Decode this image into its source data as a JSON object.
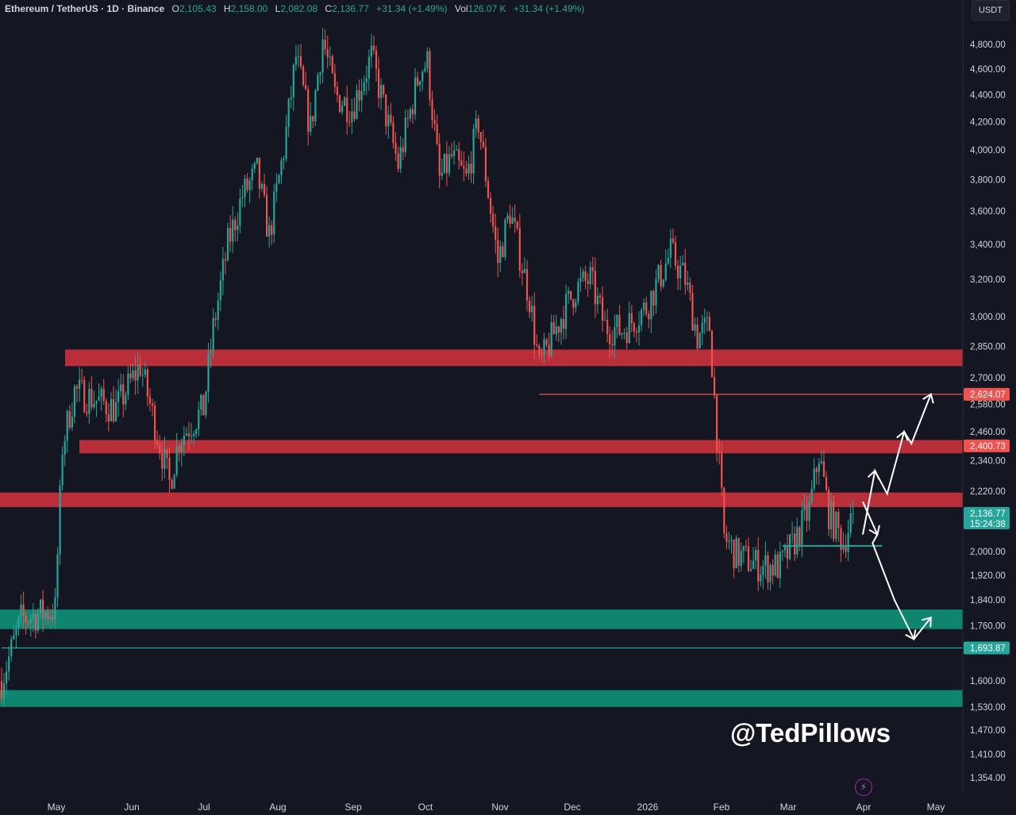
{
  "header": {
    "symbol": "Ethereum / TetherUS · 1D · Binance",
    "o_label": "O",
    "o_value": "2,105.43",
    "h_label": "H",
    "h_value": "2,158.00",
    "l_label": "L",
    "l_value": "2,082.08",
    "c_label": "C",
    "c_value": "2,136.77",
    "change": "+31.34 (+1.49%)",
    "vol_label": "Vol",
    "vol_value": "126.07 K",
    "vol_change": "+31.34 (+1.49%)"
  },
  "currency_button": "USDT",
  "watermark": "@TedPillows",
  "bolt_icon": "lightning-icon",
  "colors": {
    "background": "#141722",
    "up": "#26a69a",
    "down": "#ef5350",
    "resistance_zone": "#c8323c",
    "support_zone": "#0f8a74",
    "text": "#d1d4dc"
  },
  "chart_data": {
    "type": "candlestick",
    "y_scale": "log",
    "ylim": [
      1320,
      5000
    ],
    "y_ticks": [
      "4,800.00",
      "4,600.00",
      "4,400.00",
      "4,200.00",
      "4,000.00",
      "3,800.00",
      "3,600.00",
      "3,400.00",
      "3,200.00",
      "3,000.00",
      "2,850.00",
      "2,700.00",
      "2,580.00",
      "2,460.00",
      "2,340.00",
      "2,220.00",
      "2,000.00",
      "1,920.00",
      "1,840.00",
      "1,760.00",
      "1,600.00",
      "1,530.00",
      "1,470.00",
      "1,410.00",
      "1,354.00"
    ],
    "x_ticks": [
      "May",
      "Jun",
      "Jul",
      "Aug",
      "Sep",
      "Oct",
      "Nov",
      "Dec",
      "2026",
      "Feb",
      "Mar",
      "Apr",
      "May"
    ],
    "price_path": [
      [
        "2025-04-14",
        1600
      ],
      [
        "2025-04-22",
        1780
      ],
      [
        "2025-05-06",
        1810
      ],
      [
        "2025-05-09",
        2400
      ],
      [
        "2025-05-14",
        2640
      ],
      [
        "2025-05-31",
        2560
      ],
      [
        "2025-06-10",
        2760
      ],
      [
        "2025-06-22",
        2250
      ],
      [
        "2025-06-26",
        2430
      ],
      [
        "2025-07-06",
        2560
      ],
      [
        "2025-07-10",
        2940
      ],
      [
        "2025-07-16",
        3400
      ],
      [
        "2025-07-22",
        3700
      ],
      [
        "2025-07-28",
        3850
      ],
      [
        "2025-08-02",
        3450
      ],
      [
        "2025-08-08",
        4000
      ],
      [
        "2025-08-13",
        4700
      ],
      [
        "2025-08-19",
        4150
      ],
      [
        "2025-08-24",
        4850
      ],
      [
        "2025-08-29",
        4400
      ],
      [
        "2025-09-05",
        4300
      ],
      [
        "2025-09-13",
        4700
      ],
      [
        "2025-09-24",
        3900
      ],
      [
        "2025-10-03",
        4600
      ],
      [
        "2025-10-06",
        4650
      ],
      [
        "2025-10-11",
        3800
      ],
      [
        "2025-10-16",
        3950
      ],
      [
        "2025-10-22",
        3800
      ],
      [
        "2025-10-27",
        4200
      ],
      [
        "2025-11-04",
        3300
      ],
      [
        "2025-11-09",
        3600
      ],
      [
        "2025-11-17",
        3100
      ],
      [
        "2025-11-21",
        2750
      ],
      [
        "2025-11-30",
        3000
      ],
      [
        "2025-12-06",
        3150
      ],
      [
        "2025-12-12",
        3200
      ],
      [
        "2025-12-18",
        2950
      ],
      [
        "2025-12-25",
        2930
      ],
      [
        "2026-01-04",
        3050
      ],
      [
        "2026-01-14",
        3350
      ],
      [
        "2026-01-20",
        3200
      ],
      [
        "2026-01-25",
        2900
      ],
      [
        "2026-01-30",
        2950
      ],
      [
        "2026-02-02",
        2450
      ],
      [
        "2026-02-05",
        2050
      ],
      [
        "2026-02-10",
        1990
      ],
      [
        "2026-02-20",
        1950
      ],
      [
        "2026-02-28",
        1950
      ],
      [
        "2026-03-05",
        2020
      ],
      [
        "2026-03-12",
        2150
      ],
      [
        "2026-03-16",
        2370
      ],
      [
        "2026-03-20",
        2140
      ],
      [
        "2026-03-26",
        2030
      ],
      [
        "2026-03-30",
        2136.77
      ]
    ],
    "zones": [
      {
        "type": "resistance",
        "from_price": 2755,
        "to_price": 2835
      },
      {
        "type": "resistance",
        "from_price": 2370,
        "to_price": 2425
      },
      {
        "type": "resistance",
        "from_price": 2160,
        "to_price": 2215
      },
      {
        "type": "support",
        "from_price": 1750,
        "to_price": 1810
      },
      {
        "type": "support",
        "from_price": 1530,
        "to_price": 1575
      }
    ],
    "level_lines": [
      {
        "price": 2624.07,
        "label": "2,624.07",
        "color": "#ef5350",
        "from_date": "2025-11-21"
      },
      {
        "price": 1693.87,
        "label": "1,693.87",
        "color": "#26a69a",
        "from_date": "2025-04-14"
      },
      {
        "price": 2020,
        "color": "#26a69a",
        "from_date": "2026-03-01",
        "to_date": "2026-04-11"
      }
    ],
    "last_price": {
      "label": "2,136.77",
      "countdown": "15:24:38",
      "price": 2136.77
    },
    "zone_price_tag": {
      "label": "2,400.73",
      "price": 2400.73
    },
    "projection_bullish": [
      [
        "2026-04-03",
        2060
      ],
      [
        "2026-04-08",
        2300
      ],
      [
        "2026-04-13",
        2210
      ],
      [
        "2026-04-20",
        2460
      ],
      [
        "2026-04-23",
        2410
      ],
      [
        "2026-05-01",
        2625
      ]
    ],
    "projection_bearish": [
      [
        "2026-04-03",
        2180
      ],
      [
        "2026-04-09",
        2060
      ],
      [
        "2026-04-07",
        2030
      ],
      [
        "2026-04-16",
        1840
      ],
      [
        "2026-04-24",
        1720
      ],
      [
        "2026-05-01",
        1785
      ]
    ]
  }
}
